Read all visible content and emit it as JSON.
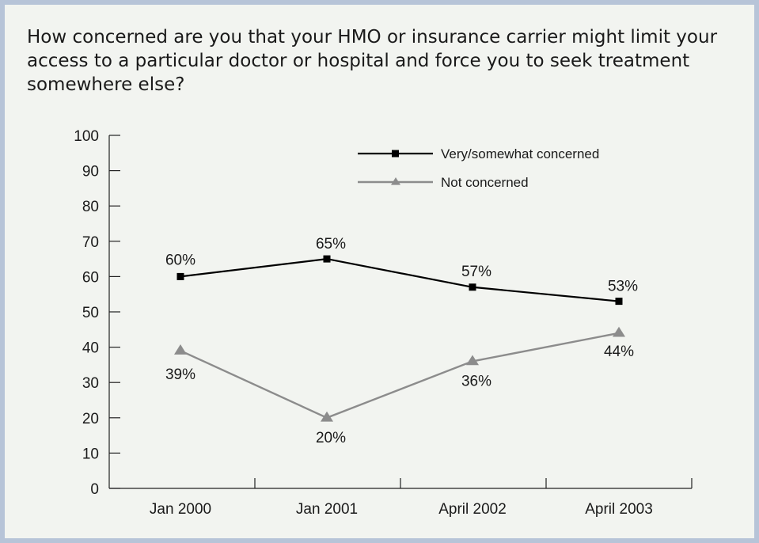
{
  "question": "How concerned are you that your HMO or insurance carrier might limit your access to a particular doctor or hospital and force you to seek treatment somewhere else?",
  "chart_data": {
    "type": "line",
    "categories": [
      "Jan 2000",
      "Jan 2001",
      "April 2002",
      "April 2003"
    ],
    "ylim": [
      0,
      100
    ],
    "yticks": [
      0,
      10,
      20,
      30,
      40,
      50,
      60,
      70,
      80,
      90,
      100
    ],
    "grid": false,
    "legend": "top-right",
    "series": [
      {
        "name": "Very/somewhat concerned",
        "values": [
          60,
          65,
          57,
          53
        ],
        "labels": [
          "60%",
          "65%",
          "57%",
          "53%"
        ],
        "color": "#000000",
        "marker": "square"
      },
      {
        "name": "Not concerned",
        "values": [
          39,
          20,
          36,
          44
        ],
        "labels": [
          "39%",
          "20%",
          "36%",
          "44%"
        ],
        "color": "#8c8c8c",
        "marker": "triangle"
      }
    ]
  }
}
